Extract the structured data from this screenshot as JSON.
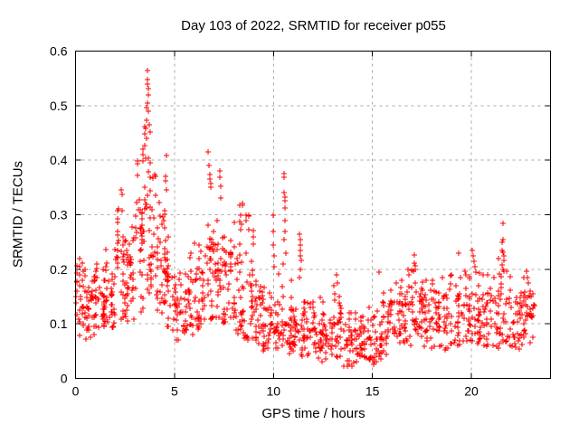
{
  "figure": {
    "background": "#ffffff"
  },
  "chart_data": {
    "type": "scatter",
    "title": "Day 103 of 2022, SRMTID for receiver p055",
    "xlabel": "GPS time / hours",
    "ylabel": "SRMTID / TECUs",
    "xlim": [
      0,
      24
    ],
    "ylim": [
      0,
      0.6
    ],
    "xticks": {
      "values": [
        0,
        5,
        10,
        15,
        20
      ],
      "labels": [
        "0",
        "5",
        "10",
        "15",
        "20"
      ]
    },
    "yticks": {
      "values": [
        0,
        0.1,
        0.2,
        0.3,
        0.4,
        0.5,
        0.6
      ],
      "labels": [
        "0",
        "0.1",
        "0.2",
        "0.3",
        "0.4",
        "0.5",
        "0.6"
      ]
    },
    "grid": {
      "show": true,
      "style": "dashed",
      "color": "#a8a8a8"
    },
    "frame_color": "#000000",
    "marker": {
      "shape": "plus",
      "color": "#ff0000",
      "size": 7
    },
    "series_name": "SRMTID",
    "legend": "none",
    "density_bins_format": [
      "hour_start",
      "hour_end",
      "count",
      "y_min",
      "y_band_lo",
      "y_band_hi",
      "y_max"
    ],
    "density_bins": [
      [
        0.0,
        0.5,
        36,
        0.07,
        0.09,
        0.18,
        0.22
      ],
      [
        0.5,
        1.0,
        34,
        0.07,
        0.09,
        0.17,
        0.19
      ],
      [
        1.0,
        1.5,
        34,
        0.08,
        0.1,
        0.18,
        0.21
      ],
      [
        1.5,
        2.0,
        34,
        0.09,
        0.11,
        0.21,
        0.25
      ],
      [
        2.0,
        2.5,
        36,
        0.1,
        0.13,
        0.27,
        0.31
      ],
      [
        2.5,
        3.0,
        36,
        0.1,
        0.14,
        0.26,
        0.3
      ],
      [
        3.0,
        3.5,
        38,
        0.12,
        0.16,
        0.33,
        0.42
      ],
      [
        3.5,
        4.0,
        42,
        0.15,
        0.22,
        0.45,
        0.52
      ],
      [
        4.0,
        4.5,
        36,
        0.12,
        0.15,
        0.32,
        0.4
      ],
      [
        4.5,
        5.0,
        30,
        0.08,
        0.1,
        0.2,
        0.3
      ],
      [
        5.0,
        5.5,
        28,
        0.07,
        0.09,
        0.17,
        0.2
      ],
      [
        5.5,
        6.0,
        30,
        0.08,
        0.1,
        0.19,
        0.23
      ],
      [
        6.0,
        6.5,
        32,
        0.09,
        0.11,
        0.21,
        0.26
      ],
      [
        6.5,
        7.0,
        32,
        0.1,
        0.12,
        0.26,
        0.33
      ],
      [
        7.0,
        7.5,
        32,
        0.09,
        0.12,
        0.24,
        0.3
      ],
      [
        7.5,
        8.0,
        30,
        0.08,
        0.1,
        0.21,
        0.26
      ],
      [
        8.0,
        8.5,
        34,
        0.08,
        0.1,
        0.25,
        0.3
      ],
      [
        8.5,
        9.0,
        32,
        0.07,
        0.09,
        0.22,
        0.3
      ],
      [
        9.0,
        9.5,
        30,
        0.06,
        0.08,
        0.17,
        0.28
      ],
      [
        9.5,
        10.0,
        28,
        0.05,
        0.07,
        0.14,
        0.22
      ],
      [
        10.0,
        10.5,
        28,
        0.05,
        0.07,
        0.15,
        0.2
      ],
      [
        10.5,
        11.0,
        28,
        0.04,
        0.06,
        0.13,
        0.18
      ],
      [
        11.0,
        11.5,
        28,
        0.04,
        0.06,
        0.12,
        0.16
      ],
      [
        11.5,
        12.0,
        28,
        0.04,
        0.05,
        0.11,
        0.14
      ],
      [
        12.0,
        12.5,
        28,
        0.03,
        0.05,
        0.11,
        0.16
      ],
      [
        12.5,
        13.0,
        28,
        0.03,
        0.05,
        0.1,
        0.14
      ],
      [
        13.0,
        13.5,
        28,
        0.03,
        0.05,
        0.11,
        0.17
      ],
      [
        13.5,
        14.0,
        28,
        0.02,
        0.04,
        0.09,
        0.12
      ],
      [
        14.0,
        14.5,
        28,
        0.02,
        0.04,
        0.09,
        0.12
      ],
      [
        14.5,
        15.0,
        26,
        0.03,
        0.04,
        0.1,
        0.13
      ],
      [
        15.0,
        15.5,
        28,
        0.03,
        0.05,
        0.13,
        0.2
      ],
      [
        15.5,
        16.0,
        28,
        0.04,
        0.06,
        0.14,
        0.19
      ],
      [
        16.0,
        16.5,
        28,
        0.05,
        0.07,
        0.15,
        0.18
      ],
      [
        16.5,
        17.0,
        28,
        0.05,
        0.07,
        0.16,
        0.2
      ],
      [
        17.0,
        17.5,
        28,
        0.05,
        0.08,
        0.17,
        0.21
      ],
      [
        17.5,
        18.0,
        28,
        0.05,
        0.07,
        0.15,
        0.18
      ],
      [
        18.0,
        18.5,
        28,
        0.05,
        0.07,
        0.16,
        0.19
      ],
      [
        18.5,
        19.0,
        28,
        0.05,
        0.07,
        0.16,
        0.19
      ],
      [
        19.0,
        19.5,
        28,
        0.06,
        0.08,
        0.17,
        0.23
      ],
      [
        19.5,
        20.0,
        26,
        0.05,
        0.07,
        0.16,
        0.21
      ],
      [
        20.0,
        20.5,
        28,
        0.06,
        0.08,
        0.18,
        0.22
      ],
      [
        20.5,
        21.0,
        26,
        0.05,
        0.07,
        0.16,
        0.2
      ],
      [
        21.0,
        21.5,
        28,
        0.05,
        0.08,
        0.17,
        0.22
      ],
      [
        21.5,
        22.0,
        28,
        0.06,
        0.09,
        0.2,
        0.25
      ],
      [
        22.0,
        22.5,
        26,
        0.05,
        0.07,
        0.15,
        0.19
      ],
      [
        22.5,
        23.0,
        28,
        0.06,
        0.08,
        0.17,
        0.21
      ],
      [
        23.0,
        23.2,
        10,
        0.07,
        0.09,
        0.14,
        0.16
      ]
    ],
    "notable_points": [
      [
        2.33,
        0.345
      ],
      [
        2.35,
        0.337
      ],
      [
        2.36,
        0.307
      ],
      [
        3.55,
        0.458
      ],
      [
        3.58,
        0.474
      ],
      [
        3.6,
        0.497
      ],
      [
        3.62,
        0.565
      ],
      [
        3.63,
        0.547
      ],
      [
        3.65,
        0.539
      ],
      [
        3.66,
        0.531
      ],
      [
        3.68,
        0.519
      ],
      [
        3.64,
        0.505
      ],
      [
        3.7,
        0.49
      ],
      [
        3.72,
        0.465
      ],
      [
        3.75,
        0.452
      ],
      [
        4.53,
        0.37
      ],
      [
        4.55,
        0.362
      ],
      [
        4.58,
        0.408
      ],
      [
        4.6,
        0.345
      ],
      [
        6.72,
        0.415
      ],
      [
        6.75,
        0.39
      ],
      [
        6.78,
        0.373
      ],
      [
        6.8,
        0.366
      ],
      [
        6.83,
        0.358
      ],
      [
        6.85,
        0.35
      ],
      [
        7.27,
        0.38
      ],
      [
        7.3,
        0.368
      ],
      [
        7.32,
        0.353
      ],
      [
        7.34,
        0.33
      ],
      [
        8.28,
        0.318
      ],
      [
        8.33,
        0.273
      ],
      [
        8.35,
        0.3
      ],
      [
        8.4,
        0.282
      ],
      [
        8.42,
        0.32
      ],
      [
        8.45,
        0.318
      ],
      [
        8.6,
        0.3
      ],
      [
        8.62,
        0.29
      ],
      [
        9.97,
        0.3
      ],
      [
        9.99,
        0.27
      ],
      [
        10.0,
        0.245
      ],
      [
        10.02,
        0.225
      ],
      [
        10.04,
        0.205
      ],
      [
        10.5,
        0.21
      ],
      [
        10.52,
        0.375
      ],
      [
        10.53,
        0.254
      ],
      [
        10.54,
        0.368
      ],
      [
        10.55,
        0.34
      ],
      [
        10.56,
        0.29
      ],
      [
        10.57,
        0.332
      ],
      [
        10.58,
        0.325
      ],
      [
        10.59,
        0.27
      ],
      [
        10.6,
        0.312
      ],
      [
        10.61,
        0.23
      ],
      [
        11.32,
        0.265
      ],
      [
        11.33,
        0.185
      ],
      [
        11.34,
        0.255
      ],
      [
        11.35,
        0.245
      ],
      [
        11.36,
        0.2
      ],
      [
        11.37,
        0.235
      ],
      [
        11.38,
        0.225
      ],
      [
        11.4,
        0.217
      ],
      [
        13.2,
        0.19
      ],
      [
        13.22,
        0.175
      ],
      [
        15.05,
        0.025
      ],
      [
        15.1,
        0.03
      ],
      [
        17.12,
        0.226
      ],
      [
        17.14,
        0.212
      ],
      [
        17.16,
        0.206
      ],
      [
        17.18,
        0.2
      ],
      [
        20.05,
        0.234
      ],
      [
        20.1,
        0.225
      ],
      [
        20.15,
        0.215
      ],
      [
        20.2,
        0.205
      ],
      [
        20.25,
        0.195
      ],
      [
        21.58,
        0.284
      ],
      [
        21.6,
        0.254
      ],
      [
        21.62,
        0.232
      ],
      [
        21.63,
        0.224
      ],
      [
        21.65,
        0.216
      ],
      [
        21.61,
        0.199
      ],
      [
        22.8,
        0.196
      ],
      [
        22.85,
        0.184
      ],
      [
        22.9,
        0.175
      ],
      [
        22.95,
        0.16
      ],
      [
        23.0,
        0.15
      ]
    ]
  }
}
